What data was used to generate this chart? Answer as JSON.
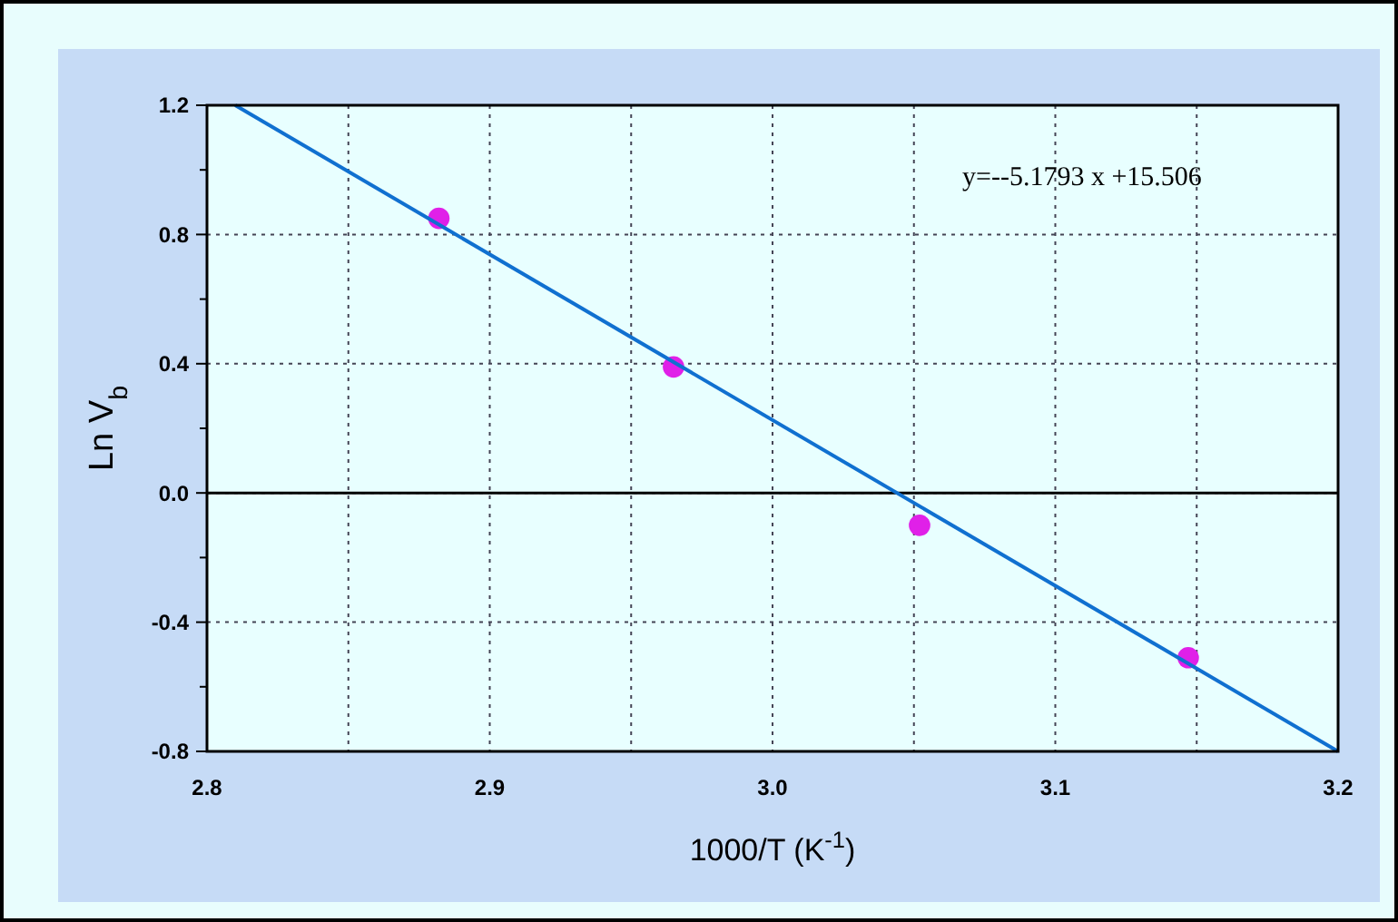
{
  "chart_data": {
    "type": "scatter",
    "xlabel": "1000/T (K$^{-1}$)",
    "ylabel": "Ln V$_{b}$",
    "xlim": [
      2.8,
      3.2
    ],
    "ylim": [
      -0.8,
      1.2
    ],
    "xticks": [
      2.8,
      {
        "value": 2.85,
        "label": null
      },
      2.9,
      {
        "value": 2.95,
        "label": null
      },
      {
        "value": 3.0,
        "label": "3.0"
      },
      {
        "value": 3.05,
        "label": null
      },
      3.1,
      {
        "value": 3.15,
        "label": null
      },
      3.2
    ],
    "yticks": [
      -0.8,
      {
        "value": -0.6,
        "label": null
      },
      -0.4,
      {
        "value": -0.2,
        "label": null
      },
      {
        "value": 0,
        "label": "0.0"
      },
      {
        "value": 0.2,
        "label": null
      },
      0.4,
      {
        "value": 0.6,
        "label": null
      },
      0.8,
      {
        "value": 1.0,
        "label": null
      },
      1.2
    ],
    "grid": true,
    "marker": "circle",
    "ref_lines": [
      {
        "axis": "y",
        "value": 0,
        "color": "#000000",
        "line_style": "solid"
      }
    ],
    "series": [
      {
        "color": "#e020e8",
        "x": [
          2.882,
          2.965,
          3.052,
          3.147
        ],
        "values": [
          0.85,
          0.39,
          -0.1,
          -0.51
        ]
      },
      {
        "type": "line",
        "color": "#1070d0",
        "x": [
          2.81,
          3.2
        ],
        "values": [
          1.2,
          -0.8
        ],
        "marker": "none",
        "line_style": "solid"
      }
    ],
    "annotations": [
      "y=--5.1793 x +15.506"
    ]
  }
}
